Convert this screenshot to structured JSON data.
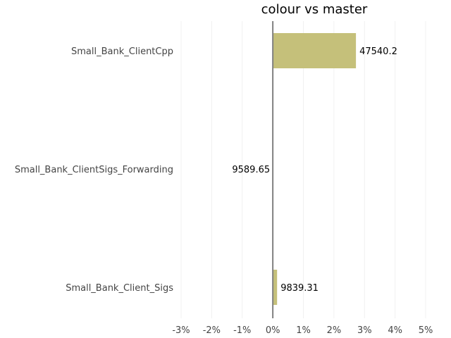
{
  "chart_data": {
    "type": "bar",
    "orientation": "horizontal",
    "title": "colour vs master",
    "xlabel": "",
    "ylabel": "",
    "categories": [
      "Small_Bank_ClientCpp",
      "Small_Bank_ClientSigs_Forwarding",
      "Small_Bank_Client_Sigs"
    ],
    "values": [
      2.72,
      0.0,
      0.14
    ],
    "value_labels": [
      "47540.2",
      "9589.65",
      "9839.31"
    ],
    "value_unit": "percent",
    "xlim": [
      -3,
      5
    ],
    "xticks": [
      -3,
      -2,
      -1,
      0,
      1,
      2,
      3,
      4,
      5
    ],
    "xtick_labels": [
      "-3%",
      "-2%",
      "-1%",
      "0%",
      "1%",
      "2%",
      "3%",
      "4%",
      "5%"
    ],
    "bar_color": "#c5c07a",
    "zero_line_color": "#808080",
    "grid": true,
    "grid_axis": "x",
    "legend": "none"
  }
}
